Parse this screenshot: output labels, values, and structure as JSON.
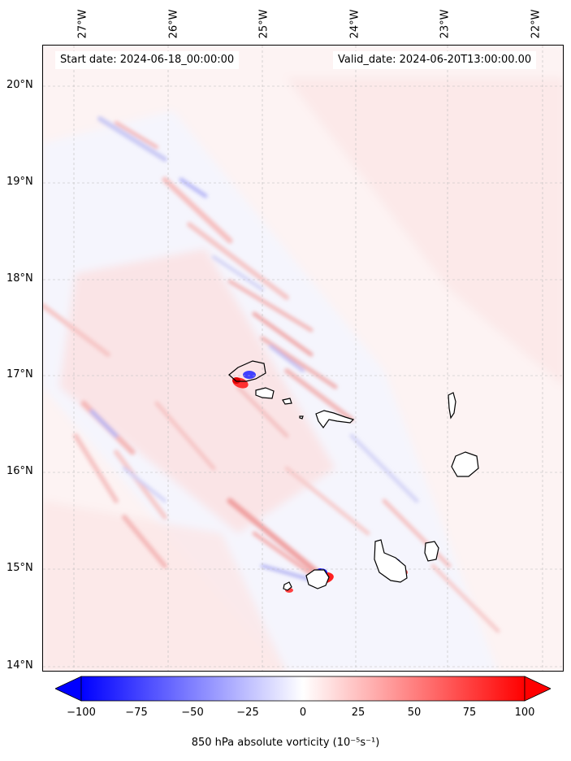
{
  "map": {
    "start_date": "Start date: 2024-06-18_00:00:00",
    "valid_date": "Valid_date: 2024-06-20T13:00:00.00",
    "lon_labels": [
      "27°W",
      "26°W",
      "25°W",
      "24°W",
      "23°W",
      "22°W"
    ],
    "lat_labels": [
      "20°N",
      "19°N",
      "18°N",
      "17°N",
      "16°N",
      "15°N",
      "14°N"
    ],
    "colorbar": {
      "ticks": [
        "−100",
        "−75",
        "−50",
        "−25",
        "0",
        "25",
        "50",
        "75",
        "100"
      ],
      "min": -100,
      "max": 100,
      "label": "850 hPa absolute vorticity (10⁻⁵s⁻¹)",
      "neg_color": "#0000ff",
      "pos_color": "#ff0000"
    }
  }
}
